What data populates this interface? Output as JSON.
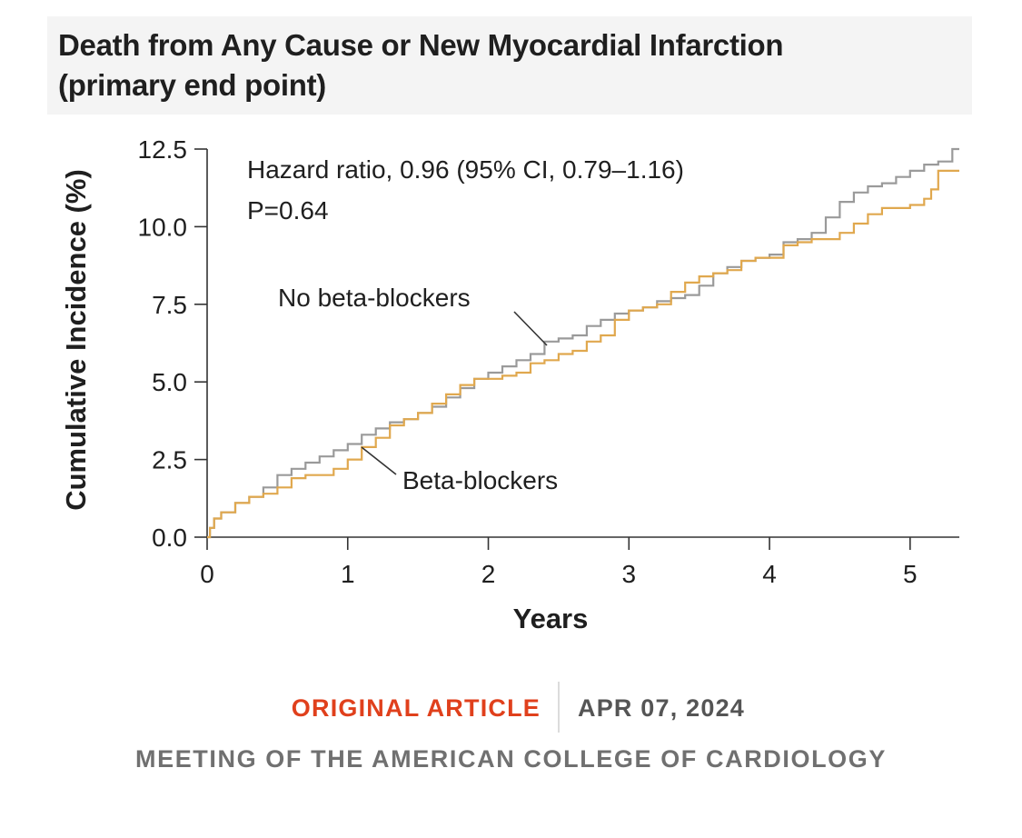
{
  "figure": {
    "title_line1": "Death from Any Cause or New Myocardial Infarction",
    "title_line2": "(primary end point)"
  },
  "chart_data": {
    "type": "line",
    "title": "Death from Any Cause or New Myocardial Infarction (primary end point)",
    "xlabel": "Years",
    "ylabel": "Cumulative Incidence (%)",
    "xlim": [
      0,
      5.35
    ],
    "ylim": [
      0,
      12.5
    ],
    "x_ticks": [
      "0",
      "1",
      "2",
      "3",
      "4",
      "5"
    ],
    "x_tick_values": [
      0,
      1,
      2,
      3,
      4,
      5
    ],
    "y_ticks": [
      "0.0",
      "2.5",
      "5.0",
      "7.5",
      "10.0",
      "12.5"
    ],
    "y_tick_values": [
      0,
      2.5,
      5.0,
      7.5,
      10.0,
      12.5
    ],
    "annotations": {
      "hazard_ratio": "Hazard ratio, 0.96 (95% CI, 0.79–1.16)",
      "p_value": "P=0.64"
    },
    "series": [
      {
        "name": "No beta-blockers",
        "color": "#9a9a9a",
        "x": [
          0,
          0.02,
          0.05,
          0.1,
          0.2,
          0.3,
          0.4,
          0.5,
          0.6,
          0.7,
          0.8,
          0.9,
          1.0,
          1.1,
          1.2,
          1.3,
          1.4,
          1.5,
          1.6,
          1.7,
          1.8,
          1.9,
          2.0,
          2.1,
          2.2,
          2.3,
          2.4,
          2.5,
          2.6,
          2.7,
          2.8,
          2.9,
          3.0,
          3.1,
          3.2,
          3.3,
          3.4,
          3.5,
          3.6,
          3.7,
          3.8,
          3.9,
          4.0,
          4.1,
          4.2,
          4.3,
          4.4,
          4.5,
          4.6,
          4.7,
          4.8,
          4.9,
          5.0,
          5.1,
          5.2,
          5.3,
          5.35
        ],
        "y": [
          0,
          0.3,
          0.6,
          0.8,
          1.1,
          1.3,
          1.6,
          2.0,
          2.2,
          2.4,
          2.6,
          2.8,
          3.0,
          3.3,
          3.5,
          3.7,
          3.8,
          4.0,
          4.2,
          4.5,
          4.8,
          5.1,
          5.3,
          5.5,
          5.7,
          5.9,
          6.3,
          6.4,
          6.5,
          6.8,
          7.0,
          7.2,
          7.3,
          7.4,
          7.6,
          7.7,
          7.8,
          8.1,
          8.5,
          8.7,
          8.9,
          9.0,
          9.1,
          9.5,
          9.6,
          9.8,
          10.3,
          10.8,
          11.1,
          11.3,
          11.4,
          11.6,
          11.8,
          12.0,
          12.1,
          12.5,
          12.5
        ]
      },
      {
        "name": "Beta-blockers",
        "color": "#e0a84e",
        "x": [
          0,
          0.02,
          0.05,
          0.1,
          0.2,
          0.3,
          0.4,
          0.5,
          0.6,
          0.7,
          0.8,
          0.9,
          1.0,
          1.1,
          1.2,
          1.3,
          1.4,
          1.5,
          1.6,
          1.7,
          1.8,
          1.9,
          2.0,
          2.1,
          2.2,
          2.3,
          2.4,
          2.5,
          2.6,
          2.7,
          2.8,
          2.9,
          3.0,
          3.1,
          3.2,
          3.3,
          3.4,
          3.5,
          3.6,
          3.7,
          3.8,
          3.9,
          4.0,
          4.1,
          4.2,
          4.3,
          4.4,
          4.5,
          4.6,
          4.7,
          4.8,
          4.9,
          5.0,
          5.1,
          5.15,
          5.2,
          5.35
        ],
        "y": [
          0,
          0.3,
          0.6,
          0.8,
          1.1,
          1.3,
          1.4,
          1.6,
          1.9,
          2.0,
          2.0,
          2.2,
          2.5,
          2.9,
          3.2,
          3.6,
          3.8,
          4.0,
          4.3,
          4.6,
          4.9,
          5.1,
          5.1,
          5.2,
          5.3,
          5.6,
          5.7,
          5.9,
          6.0,
          6.3,
          6.5,
          7.0,
          7.3,
          7.4,
          7.5,
          7.9,
          8.2,
          8.4,
          8.5,
          8.6,
          8.9,
          9.0,
          9.0,
          9.4,
          9.5,
          9.6,
          9.6,
          9.8,
          10.1,
          10.4,
          10.6,
          10.6,
          10.7,
          10.9,
          11.2,
          11.8,
          11.8
        ]
      }
    ],
    "series_labels": {
      "no_bb": "No beta-blockers",
      "bb": "Beta-blockers"
    }
  },
  "footer": {
    "tag": "ORIGINAL ARTICLE",
    "date": "APR 07, 2024",
    "meeting": "MEETING OF THE AMERICAN COLLEGE OF CARDIOLOGY"
  },
  "colors": {
    "tag": "#e0401c",
    "date": "#555555",
    "meeting": "#707070",
    "title_bg": "#f4f4f4"
  }
}
